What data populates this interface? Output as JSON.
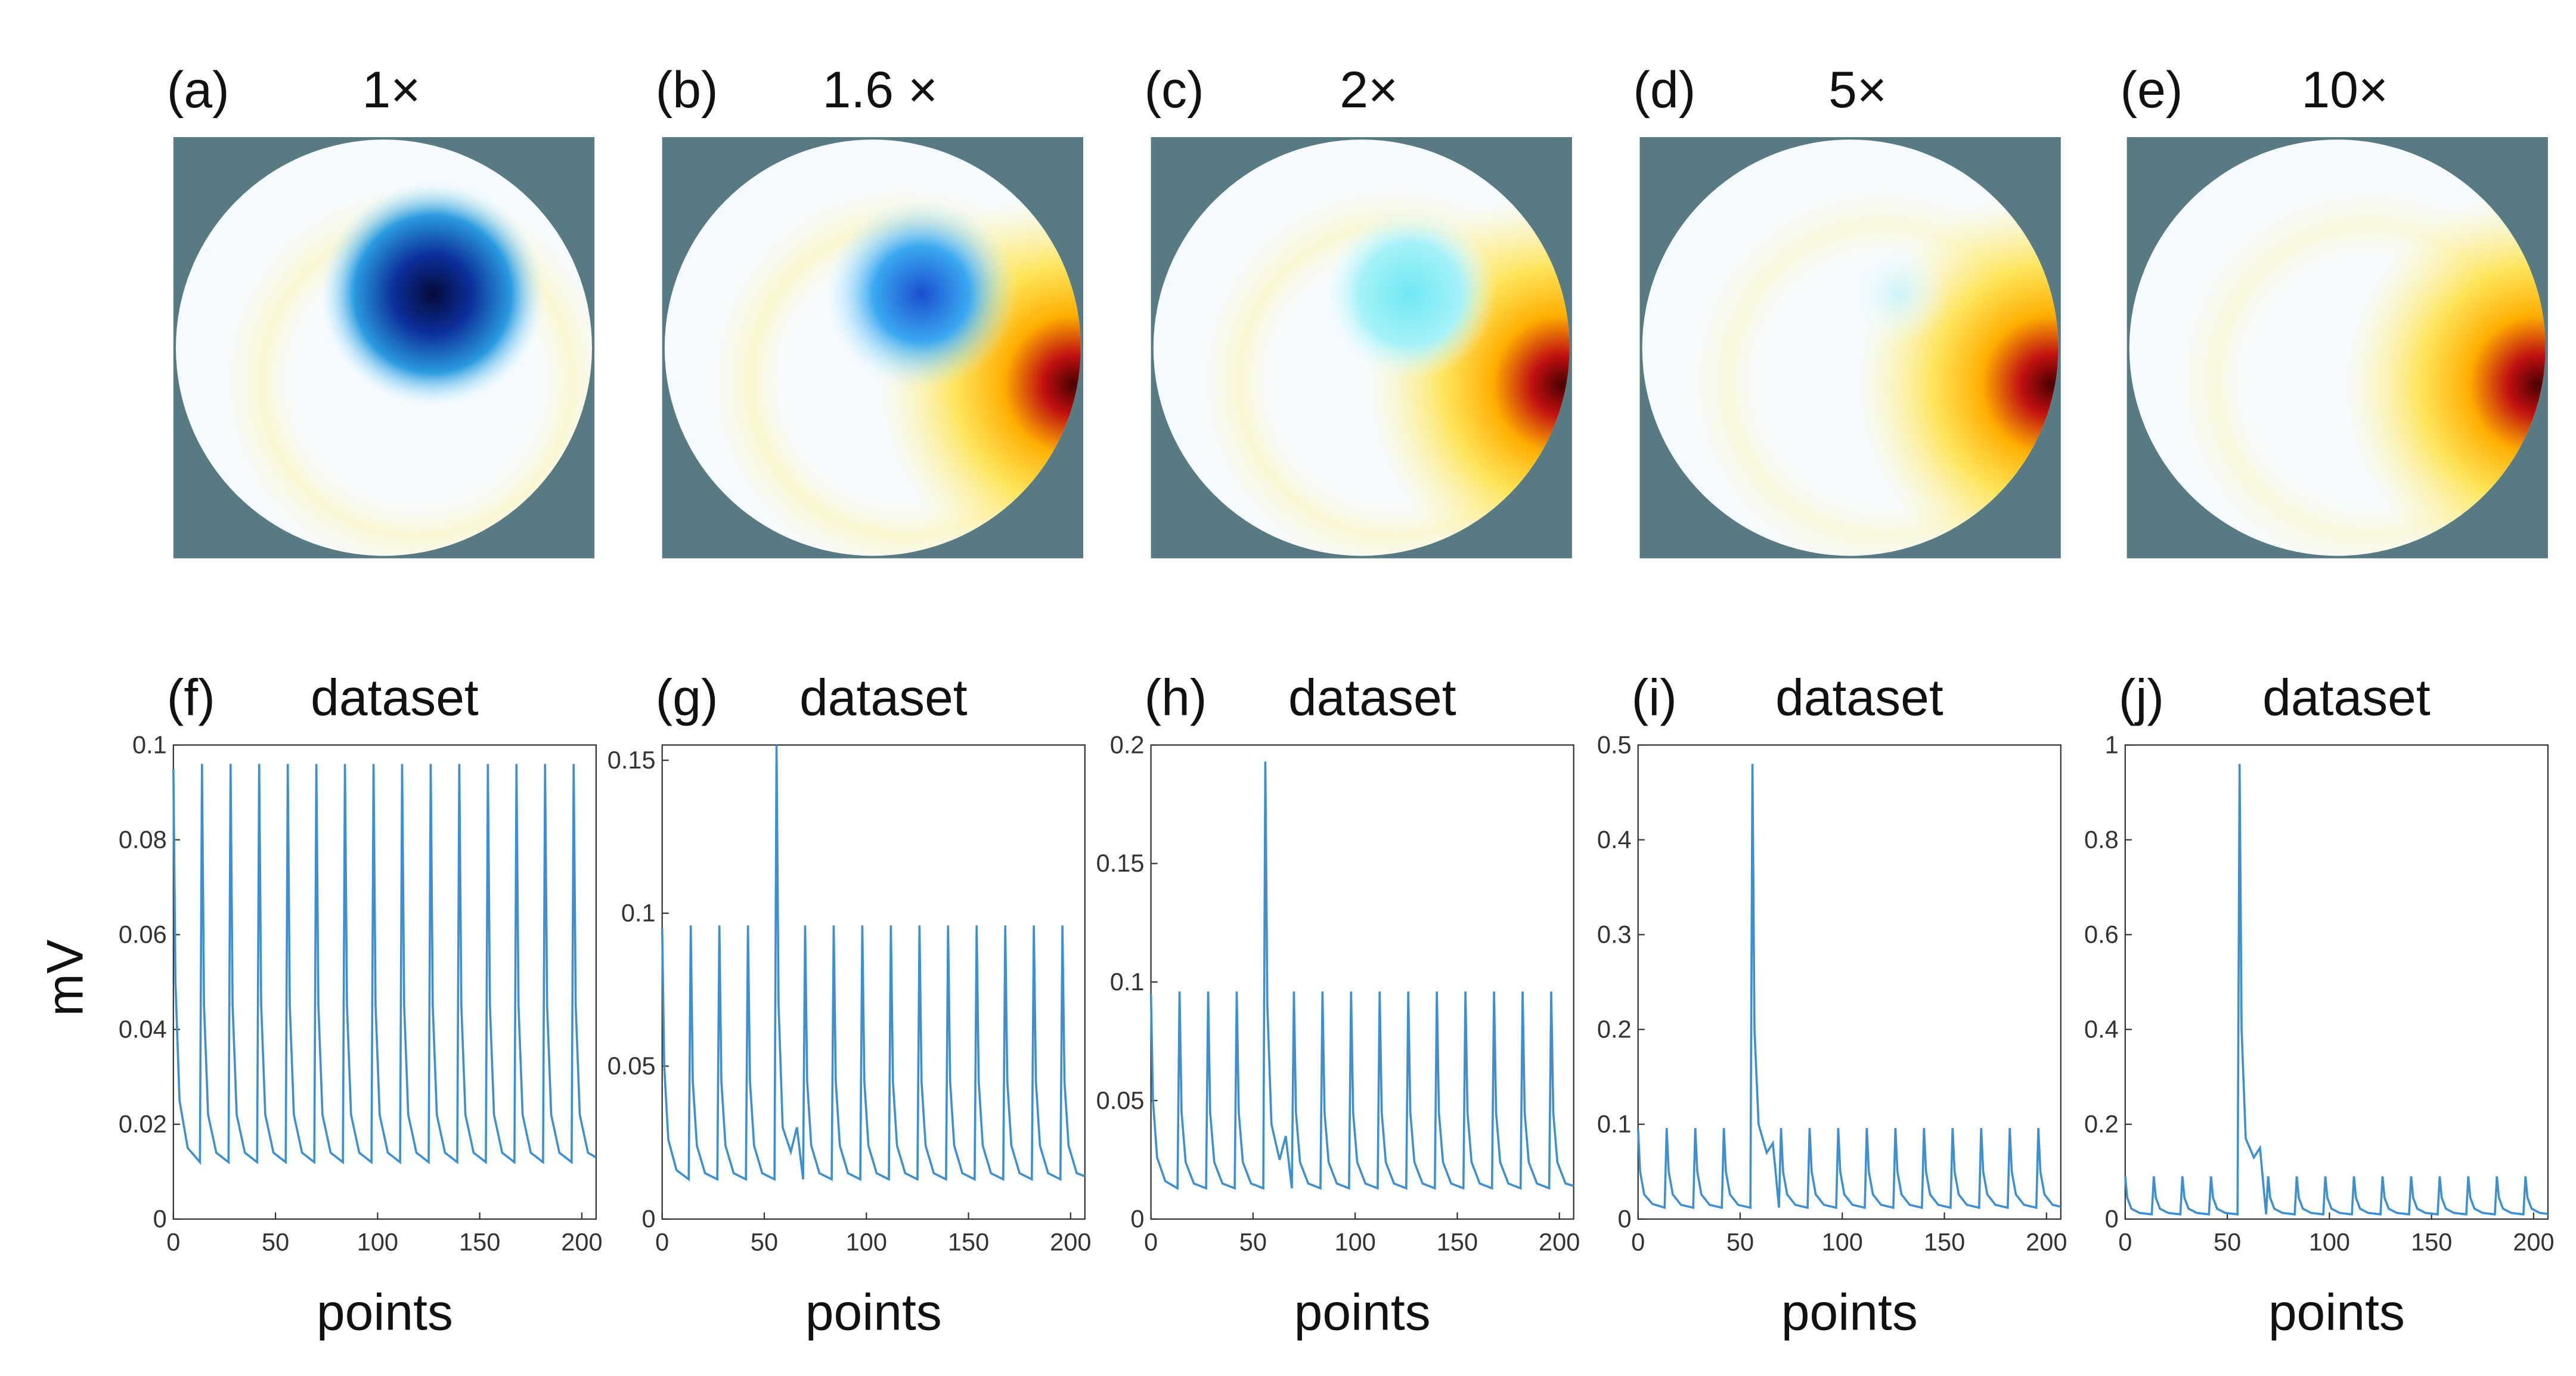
{
  "panels": [
    {
      "label": "(a)",
      "title": "1×"
    },
    {
      "label": "(b)",
      "title": "1.6 ×"
    },
    {
      "label": "(c)",
      "title": "2×"
    },
    {
      "label": "(d)",
      "title": "5×"
    },
    {
      "label": "(e)",
      "title": "10×"
    }
  ],
  "chart_data": [
    {
      "type": "line",
      "label": "(f)",
      "title": "dataset",
      "xlabel": "points",
      "ylabel": "mV",
      "x": [
        0,
        1,
        3,
        7,
        13,
        14,
        15,
        17,
        21,
        27,
        28,
        29,
        31,
        35,
        41,
        42,
        43,
        45,
        49,
        55,
        56,
        57,
        59,
        63,
        66,
        69,
        70,
        71,
        73,
        77,
        83,
        84,
        85,
        87,
        91,
        97,
        98,
        99,
        101,
        105,
        111,
        112,
        113,
        115,
        119,
        125,
        126,
        127,
        129,
        133,
        139,
        140,
        141,
        143,
        147,
        153,
        154,
        155,
        157,
        161,
        167,
        168,
        169,
        171,
        175,
        181,
        182,
        183,
        185,
        189,
        195,
        196,
        197,
        199,
        203,
        207
      ],
      "series": [
        {
          "color": "#3d8fcf",
          "values": [
            0.095,
            0.05,
            0.025,
            0.015,
            0.012,
            0.096,
            0.045,
            0.022,
            0.014,
            0.012,
            0.096,
            0.045,
            0.022,
            0.014,
            0.012,
            0.096,
            0.045,
            0.022,
            0.014,
            0.012,
            0.096,
            0.045,
            0.022,
            0.014,
            0.013,
            0.012,
            0.096,
            0.045,
            0.022,
            0.014,
            0.012,
            0.096,
            0.045,
            0.022,
            0.014,
            0.012,
            0.096,
            0.045,
            0.022,
            0.014,
            0.012,
            0.096,
            0.045,
            0.022,
            0.014,
            0.012,
            0.096,
            0.045,
            0.022,
            0.014,
            0.012,
            0.096,
            0.045,
            0.022,
            0.014,
            0.012,
            0.096,
            0.045,
            0.022,
            0.014,
            0.012,
            0.096,
            0.045,
            0.022,
            0.014,
            0.012,
            0.096,
            0.045,
            0.022,
            0.014,
            0.012,
            0.096,
            0.045,
            0.022,
            0.014,
            0.013
          ]
        }
      ],
      "xlim": [
        0,
        207
      ],
      "xticks": [
        0,
        50,
        100,
        150,
        200
      ],
      "ylim": [
        0,
        0.1
      ],
      "yticks": [
        0,
        0.02,
        0.04,
        0.06,
        0.08,
        0.1
      ]
    },
    {
      "type": "line",
      "label": "(g)",
      "title": "dataset",
      "xlabel": "points",
      "x": [
        0,
        1,
        3,
        7,
        13,
        14,
        15,
        17,
        21,
        27,
        28,
        29,
        31,
        35,
        41,
        42,
        43,
        45,
        49,
        55,
        56,
        57,
        59,
        63,
        66,
        69,
        70,
        71,
        73,
        77,
        83,
        84,
        85,
        87,
        91,
        97,
        98,
        99,
        101,
        105,
        111,
        112,
        113,
        115,
        119,
        125,
        126,
        127,
        129,
        133,
        139,
        140,
        141,
        143,
        147,
        153,
        154,
        155,
        157,
        161,
        167,
        168,
        169,
        171,
        175,
        181,
        182,
        183,
        185,
        189,
        195,
        196,
        197,
        199,
        203,
        207
      ],
      "series": [
        {
          "color": "#3d8fcf",
          "values": [
            0.095,
            0.05,
            0.026,
            0.016,
            0.013,
            0.096,
            0.045,
            0.024,
            0.015,
            0.013,
            0.096,
            0.045,
            0.024,
            0.015,
            0.013,
            0.096,
            0.045,
            0.024,
            0.015,
            0.013,
            0.155,
            0.07,
            0.03,
            0.022,
            0.03,
            0.013,
            0.096,
            0.045,
            0.024,
            0.015,
            0.013,
            0.096,
            0.045,
            0.024,
            0.015,
            0.013,
            0.096,
            0.045,
            0.024,
            0.015,
            0.013,
            0.096,
            0.045,
            0.024,
            0.015,
            0.013,
            0.096,
            0.045,
            0.024,
            0.015,
            0.013,
            0.096,
            0.045,
            0.024,
            0.015,
            0.013,
            0.096,
            0.045,
            0.024,
            0.015,
            0.013,
            0.096,
            0.045,
            0.024,
            0.015,
            0.013,
            0.096,
            0.045,
            0.024,
            0.015,
            0.013,
            0.096,
            0.045,
            0.024,
            0.015,
            0.014
          ]
        }
      ],
      "xlim": [
        0,
        207
      ],
      "xticks": [
        0,
        50,
        100,
        150,
        200
      ],
      "ylim": [
        0,
        0.155
      ],
      "yticks": [
        0,
        0.05,
        0.1,
        0.15
      ]
    },
    {
      "type": "line",
      "label": "(h)",
      "title": "dataset",
      "xlabel": "points",
      "x": [
        0,
        1,
        3,
        7,
        13,
        14,
        15,
        17,
        21,
        27,
        28,
        29,
        31,
        35,
        41,
        42,
        43,
        45,
        49,
        55,
        56,
        57,
        59,
        63,
        66,
        69,
        70,
        71,
        73,
        77,
        83,
        84,
        85,
        87,
        91,
        97,
        98,
        99,
        101,
        105,
        111,
        112,
        113,
        115,
        119,
        125,
        126,
        127,
        129,
        133,
        139,
        140,
        141,
        143,
        147,
        153,
        154,
        155,
        157,
        161,
        167,
        168,
        169,
        171,
        175,
        181,
        182,
        183,
        185,
        189,
        195,
        196,
        197,
        199,
        203,
        207
      ],
      "series": [
        {
          "color": "#3d8fcf",
          "values": [
            0.095,
            0.05,
            0.026,
            0.016,
            0.013,
            0.096,
            0.045,
            0.024,
            0.015,
            0.013,
            0.096,
            0.045,
            0.024,
            0.015,
            0.013,
            0.096,
            0.045,
            0.024,
            0.015,
            0.013,
            0.193,
            0.09,
            0.04,
            0.025,
            0.035,
            0.013,
            0.096,
            0.045,
            0.024,
            0.015,
            0.013,
            0.096,
            0.045,
            0.024,
            0.015,
            0.013,
            0.096,
            0.045,
            0.024,
            0.015,
            0.013,
            0.096,
            0.045,
            0.024,
            0.015,
            0.013,
            0.096,
            0.045,
            0.024,
            0.015,
            0.013,
            0.096,
            0.045,
            0.024,
            0.015,
            0.013,
            0.096,
            0.045,
            0.024,
            0.015,
            0.013,
            0.096,
            0.045,
            0.024,
            0.015,
            0.013,
            0.096,
            0.045,
            0.024,
            0.015,
            0.013,
            0.096,
            0.045,
            0.024,
            0.015,
            0.014
          ]
        }
      ],
      "xlim": [
        0,
        207
      ],
      "xticks": [
        0,
        50,
        100,
        150,
        200
      ],
      "ylim": [
        0,
        0.2
      ],
      "yticks": [
        0,
        0.05,
        0.1,
        0.15,
        0.2
      ]
    },
    {
      "type": "line",
      "label": "(i)",
      "title": "dataset",
      "xlabel": "points",
      "x": [
        0,
        1,
        3,
        7,
        13,
        14,
        15,
        17,
        21,
        27,
        28,
        29,
        31,
        35,
        41,
        42,
        43,
        45,
        49,
        55,
        56,
        57,
        59,
        63,
        66,
        69,
        70,
        71,
        73,
        77,
        83,
        84,
        85,
        87,
        91,
        97,
        98,
        99,
        101,
        105,
        111,
        112,
        113,
        115,
        119,
        125,
        126,
        127,
        129,
        133,
        139,
        140,
        141,
        143,
        147,
        153,
        154,
        155,
        157,
        161,
        167,
        168,
        169,
        171,
        175,
        181,
        182,
        183,
        185,
        189,
        195,
        196,
        197,
        199,
        203,
        207
      ],
      "series": [
        {
          "color": "#3d8fcf",
          "values": [
            0.095,
            0.05,
            0.026,
            0.016,
            0.012,
            0.096,
            0.05,
            0.026,
            0.015,
            0.012,
            0.096,
            0.05,
            0.026,
            0.015,
            0.012,
            0.096,
            0.05,
            0.026,
            0.015,
            0.012,
            0.48,
            0.2,
            0.1,
            0.07,
            0.08,
            0.012,
            0.096,
            0.05,
            0.026,
            0.015,
            0.012,
            0.096,
            0.05,
            0.026,
            0.015,
            0.012,
            0.096,
            0.05,
            0.026,
            0.015,
            0.012,
            0.096,
            0.05,
            0.026,
            0.015,
            0.012,
            0.096,
            0.05,
            0.026,
            0.015,
            0.012,
            0.096,
            0.05,
            0.026,
            0.015,
            0.012,
            0.096,
            0.05,
            0.026,
            0.015,
            0.012,
            0.096,
            0.05,
            0.026,
            0.015,
            0.012,
            0.096,
            0.05,
            0.026,
            0.015,
            0.012,
            0.096,
            0.05,
            0.026,
            0.015,
            0.013
          ]
        }
      ],
      "xlim": [
        0,
        207
      ],
      "xticks": [
        0,
        50,
        100,
        150,
        200
      ],
      "ylim": [
        0,
        0.5
      ],
      "yticks": [
        0,
        0.1,
        0.2,
        0.3,
        0.4,
        0.5
      ]
    },
    {
      "type": "line",
      "label": "(j)",
      "title": "dataset",
      "xlabel": "points",
      "x": [
        0,
        1,
        3,
        7,
        13,
        14,
        15,
        17,
        21,
        27,
        28,
        29,
        31,
        35,
        41,
        42,
        43,
        45,
        49,
        55,
        56,
        57,
        59,
        63,
        66,
        69,
        70,
        71,
        73,
        77,
        83,
        84,
        85,
        87,
        91,
        97,
        98,
        99,
        101,
        105,
        111,
        112,
        113,
        115,
        119,
        125,
        126,
        127,
        129,
        133,
        139,
        140,
        141,
        143,
        147,
        153,
        154,
        155,
        157,
        161,
        167,
        168,
        169,
        171,
        175,
        181,
        182,
        183,
        185,
        189,
        195,
        196,
        197,
        199,
        203,
        207
      ],
      "series": [
        {
          "color": "#3d8fcf",
          "values": [
            0.09,
            0.045,
            0.022,
            0.013,
            0.01,
            0.09,
            0.045,
            0.022,
            0.013,
            0.01,
            0.09,
            0.045,
            0.022,
            0.013,
            0.01,
            0.09,
            0.045,
            0.022,
            0.013,
            0.01,
            0.96,
            0.4,
            0.17,
            0.13,
            0.15,
            0.01,
            0.09,
            0.045,
            0.022,
            0.013,
            0.01,
            0.09,
            0.045,
            0.022,
            0.013,
            0.01,
            0.09,
            0.045,
            0.022,
            0.013,
            0.01,
            0.09,
            0.045,
            0.022,
            0.013,
            0.01,
            0.09,
            0.045,
            0.022,
            0.013,
            0.01,
            0.09,
            0.045,
            0.022,
            0.013,
            0.01,
            0.09,
            0.045,
            0.022,
            0.013,
            0.01,
            0.09,
            0.045,
            0.022,
            0.013,
            0.01,
            0.09,
            0.045,
            0.022,
            0.013,
            0.01,
            0.09,
            0.045,
            0.022,
            0.013,
            0.011
          ]
        }
      ],
      "xlim": [
        0,
        207
      ],
      "xticks": [
        0,
        50,
        100,
        150,
        200
      ],
      "ylim": [
        0,
        1
      ],
      "yticks": [
        0,
        0.2,
        0.4,
        0.6,
        0.8,
        1
      ]
    }
  ]
}
